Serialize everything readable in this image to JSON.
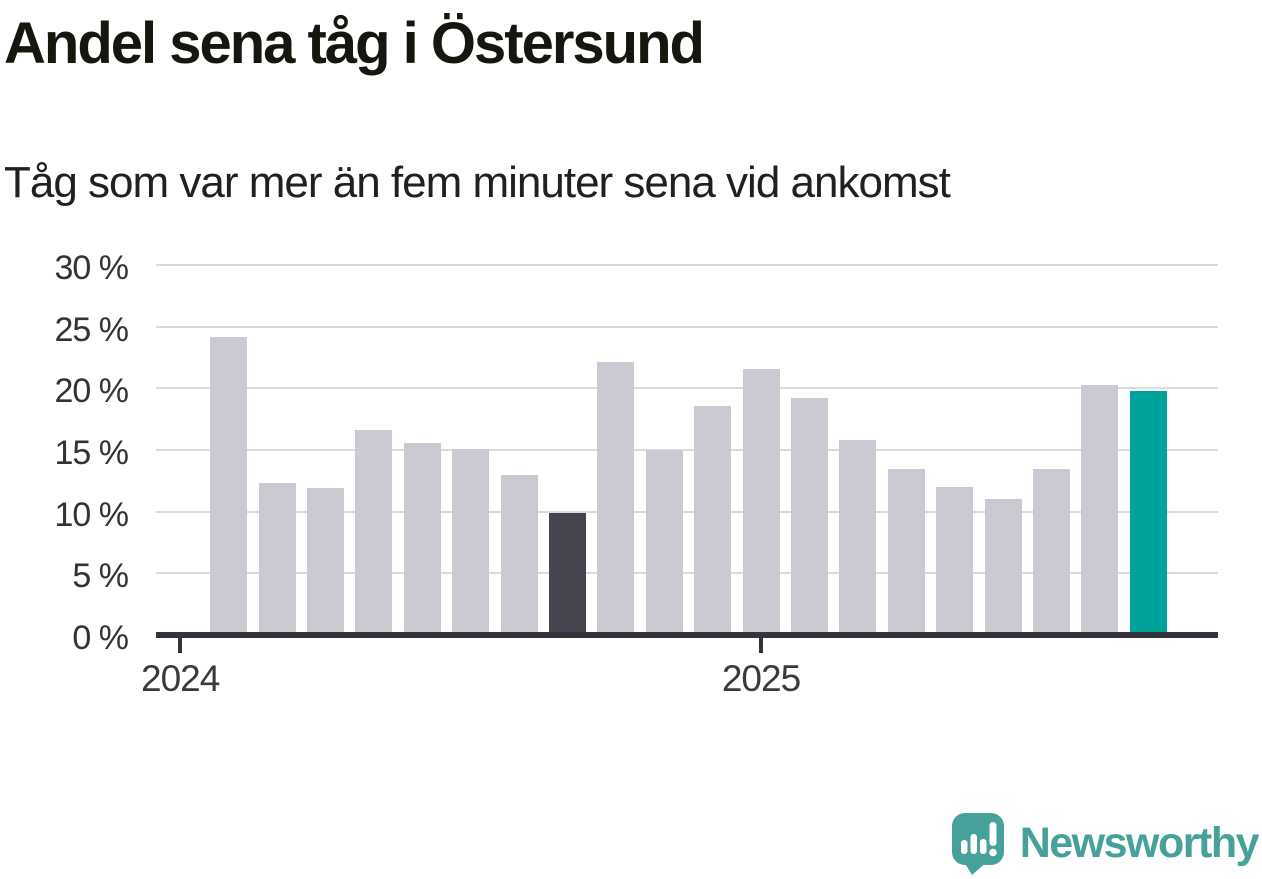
{
  "title": "Andel sena tåg i Östersund",
  "subtitle": "Tåg som var mer än fem minuter sena vid ankomst",
  "brand": {
    "name": "Newsworthy",
    "color": "#46a19b"
  },
  "colors": {
    "bar_default": "#cbcad2",
    "bar_dark": "#45444f",
    "bar_teal": "#00a39b",
    "axis": "#33333b",
    "gridline": "#dadbde",
    "title_text": "#16160f",
    "label_text": "#333333"
  },
  "chart_data": {
    "type": "bar",
    "title": "Andel sena tåg i Östersund",
    "subtitle": "Tåg som var mer än fem minuter sena vid ankomst",
    "unit": "%",
    "grid": true,
    "ylim": [
      0,
      30
    ],
    "legend_position": "none",
    "x": [
      "2024-02",
      "2024-03",
      "2024-04",
      "2024-05",
      "2024-06",
      "2024-07",
      "2024-08",
      "2024-09",
      "2024-10",
      "2024-11",
      "2024-12",
      "2025-01",
      "2025-02",
      "2025-03",
      "2025-04",
      "2025-05",
      "2025-06",
      "2025-07",
      "2025-08",
      "2025-09"
    ],
    "values": [
      24.2,
      12.3,
      11.9,
      16.6,
      15.6,
      15.1,
      13.0,
      9.9,
      22.1,
      15.0,
      18.6,
      21.6,
      19.2,
      15.8,
      13.5,
      12.0,
      11.0,
      13.5,
      20.3,
      19.8
    ],
    "roles": [
      "default",
      "default",
      "default",
      "default",
      "default",
      "default",
      "default",
      "dark",
      "default",
      "default",
      "default",
      "default",
      "default",
      "default",
      "default",
      "default",
      "default",
      "default",
      "default",
      "teal"
    ],
    "y_ticks": [
      {
        "value": 0,
        "label": "0 %"
      },
      {
        "value": 5,
        "label": "5 %"
      },
      {
        "value": 10,
        "label": "10 %"
      },
      {
        "value": 15,
        "label": "15 %"
      },
      {
        "value": 20,
        "label": "20 %"
      },
      {
        "value": 25,
        "label": "25 %"
      },
      {
        "value": 30,
        "label": "30 %"
      }
    ],
    "x_ticks": [
      {
        "label": "2024",
        "month_offset": -1
      },
      {
        "label": "2025",
        "month_offset": 11
      }
    ]
  }
}
